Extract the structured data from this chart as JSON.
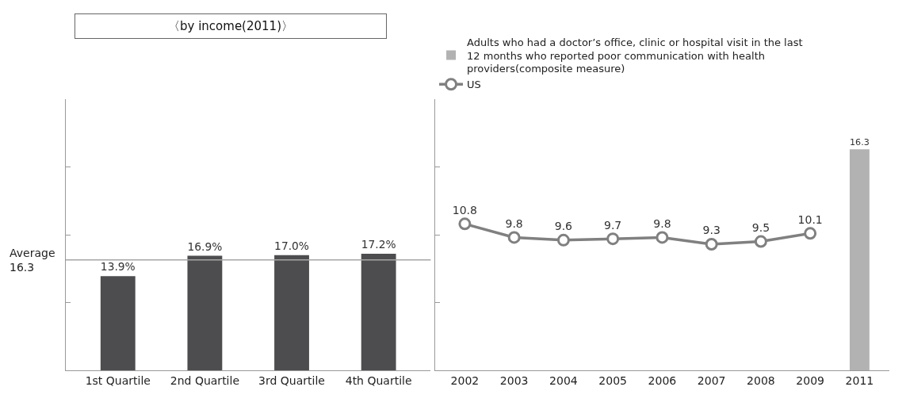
{
  "chart_data": [
    {
      "type": "bar",
      "title": "〈by income(2011)〉",
      "categories": [
        "1st Quartile",
        "2nd Quartile",
        "3rd Quartile",
        "4th Quartile"
      ],
      "values": [
        13.9,
        16.9,
        17.0,
        17.2
      ],
      "value_labels": [
        "13.9%",
        "16.9%",
        "17.0%",
        "17.2%"
      ],
      "color": "#4d4d4f",
      "ylim": [
        0,
        40
      ],
      "yticks": [
        {
          "value": 0,
          "label": null
        },
        {
          "value": 10,
          "label": null
        },
        {
          "value": 20,
          "label": null
        },
        {
          "value": 30,
          "label": null
        }
      ],
      "tick_labels": "x",
      "legend": false,
      "ref_lines": [
        {
          "axis": "y",
          "value": 16.3,
          "label": "Average\n16.3",
          "color": "#a6a6a6"
        }
      ]
    },
    {
      "type": "line",
      "categories": [
        "2002",
        "2003",
        "2004",
        "2005",
        "2006",
        "2007",
        "2008",
        "2009",
        "2011"
      ],
      "ylim": [
        0,
        20
      ],
      "yticks": [
        {
          "value": 0,
          "label": null
        },
        {
          "value": 5,
          "label": null
        },
        {
          "value": 10,
          "label": null
        },
        {
          "value": 15,
          "label": null
        }
      ],
      "tick_labels": "x",
      "legend": "top left",
      "data_labels": true,
      "marker": "circle",
      "series": [
        {
          "type": "bar",
          "name": "Adults who had a doctor’s office, clinic or hospital visit in the last 12 months who reported poor communication with health providers(composite measure)",
          "color": "#b2b2b2",
          "values": [
            null,
            null,
            null,
            null,
            null,
            null,
            null,
            null,
            16.3
          ]
        },
        {
          "type": "line",
          "name": "US",
          "color": "#808080",
          "values": [
            10.8,
            9.8,
            9.6,
            9.7,
            9.8,
            9.3,
            9.5,
            10.1,
            null
          ]
        }
      ]
    }
  ]
}
